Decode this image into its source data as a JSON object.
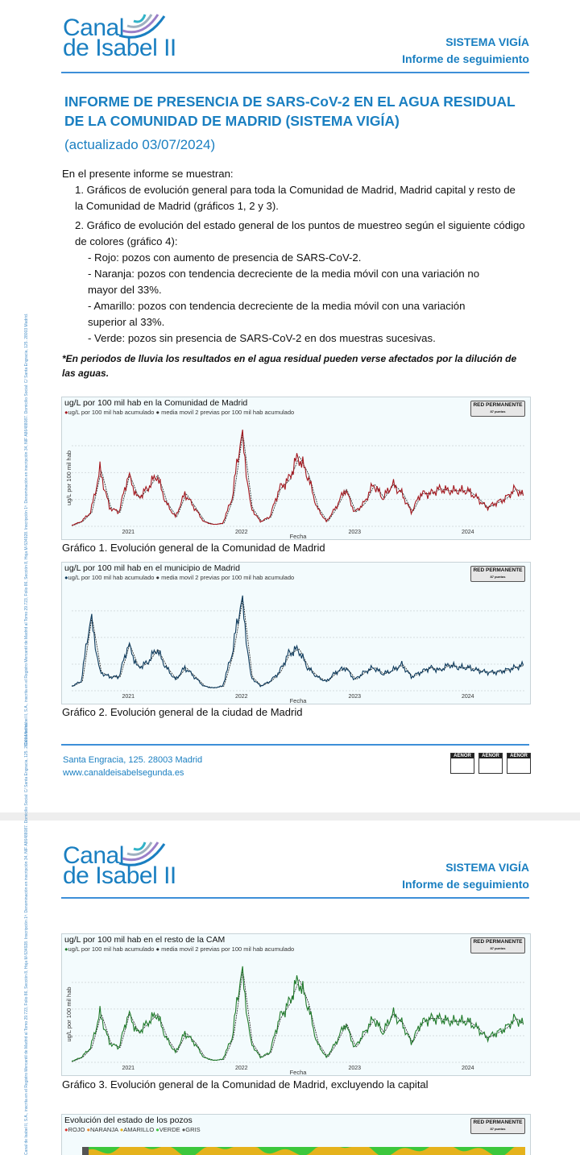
{
  "header": {
    "logo_line1": "Canal",
    "logo_line2": "de Isabel II",
    "system": "SISTEMA VIGÍA",
    "subtitle": "Informe de seguimiento"
  },
  "sidebar_text": "Canal de Isabel II, S.A., inscrita en el Registro Mercantil de Madrid al Tomo 29.723, Folio 86, Sección 8, Hoja M-534928. Inscripción 1ª. Denominación en inscripción 34, NIF A86488087. Domicilio Social: C/ Santa Engracia, 125. 28003 Madrid.",
  "report": {
    "title": "INFORME DE PRESENCIA DE SARS-CoV-2 EN EL AGUA RESIDUAL DE LA COMUNIDAD DE MADRID (SISTEMA VIGÍA)",
    "updated": "(actualizado 03/07/2024)",
    "intro": "En el presente informe se muestran:",
    "item1": "1. Gráficos de evolución general para toda la Comunidad de Madrid, Madrid capital y resto de la Comunidad de Madrid (gráficos 1, 2 y 3).",
    "item2": "2. Gráfico de evolución del estado general de los puntos de muestreo según el siguiente código de colores (gráfico 4):",
    "codes": [
      "- Rojo: pozos con aumento de presencia de SARS-CoV-2.",
      "- Naranja: pozos con tendencia decreciente de la media móvil con una variación no mayor del 33%.",
      "- Amarillo: pozos con tendencia decreciente de la media móvil con una variación superior al 33%.",
      "- Verde: pozos sin presencia de SARS-CoV-2 en dos muestras sucesivas."
    ],
    "note": "*En periodos de lluvia los resultados en el agua residual pueden verse afectados por la dilución de las aguas."
  },
  "badge": {
    "label": "RED PERMANENTE",
    "sub": "87 puntos"
  },
  "footer": {
    "address": "Santa Engracia, 125. 28003 Madrid",
    "web": "www.canaldeisabelsegunda.es",
    "cert": [
      "AENOR",
      "AENOR",
      "AENOR"
    ]
  },
  "chart_data": [
    {
      "type": "line",
      "title": "ug/L por 100 mil hab en la Comunidad de Madrid",
      "caption": "Gráfico 1. Evolución general de la Comunidad de Madrid",
      "legend": [
        "ug/L por 100 mil hab acumulado",
        "media movil 2 previas por 100 mil hab acumulado"
      ],
      "xlabel": "Fecha",
      "ylabel": "ug/L por 100 mil hab",
      "xticks": [
        "2021",
        "2022",
        "2023",
        "2024"
      ],
      "start": "2020-07",
      "color": "#a3161d",
      "values": [
        1,
        5,
        15,
        60,
        20,
        15,
        55,
        30,
        40,
        55,
        25,
        10,
        35,
        20,
        5,
        2,
        3,
        30,
        100,
        20,
        5,
        10,
        40,
        50,
        75,
        55,
        20,
        5,
        20,
        40,
        15,
        25,
        45,
        30,
        45,
        35,
        15,
        35,
        35,
        40,
        38,
        38,
        38,
        30,
        20,
        25,
        30,
        40,
        32
      ]
    },
    {
      "type": "line",
      "title": "ug/L por 100 mil hab en el municipio de Madrid",
      "caption": "Gráfico 2. Evolución general de la ciudad de Madrid",
      "legend": [
        "ug/L por 100 mil hab acumulado",
        "media movil 2 previas por 100 mil hab acumulado"
      ],
      "xlabel": "Fecha",
      "ylabel": "",
      "xticks": [
        "2021",
        "2022",
        "2023",
        "2024"
      ],
      "start": "2020-07",
      "color": "#0d3a5c",
      "values": [
        5,
        10,
        80,
        20,
        15,
        15,
        50,
        25,
        30,
        45,
        25,
        12,
        25,
        15,
        5,
        3,
        5,
        40,
        100,
        15,
        5,
        10,
        20,
        40,
        45,
        25,
        15,
        10,
        20,
        25,
        12,
        20,
        25,
        18,
        22,
        28,
        15,
        20,
        25,
        22,
        28,
        25,
        25,
        22,
        20,
        20,
        22,
        25,
        28
      ]
    },
    {
      "type": "line",
      "title": "ug/L por 100 mil hab en el resto de la CAM",
      "caption": "Gráfico 3. Evolución general de la Comunidad de Madrid, excluyendo la capital",
      "legend": [
        "ug/L por 100 mil hab acumulado",
        "media movil 2 previas por 100 mil hab acumulado"
      ],
      "xlabel": "Fecha",
      "ylabel": "ug/L por 100 mil hab",
      "xticks": [
        "2021",
        "2022",
        "2023",
        "2024"
      ],
      "start": "2020-07",
      "color": "#1f7a2a",
      "values": [
        1,
        5,
        15,
        50,
        20,
        15,
        50,
        30,
        40,
        50,
        25,
        10,
        30,
        20,
        5,
        2,
        3,
        25,
        95,
        20,
        5,
        10,
        45,
        60,
        85,
        60,
        20,
        5,
        20,
        40,
        15,
        30,
        45,
        30,
        50,
        40,
        20,
        40,
        45,
        45,
        42,
        42,
        42,
        35,
        25,
        30,
        35,
        45,
        38
      ]
    },
    {
      "type": "area",
      "title": "Evolución del estado de los pozos",
      "legend": [
        {
          "label": "ROJO",
          "color": "#d6302a"
        },
        {
          "label": "NARANJA",
          "color": "#e8852b"
        },
        {
          "label": "AMARILLO",
          "color": "#e5b21c"
        },
        {
          "label": "VERDE",
          "color": "#3cc73c"
        },
        {
          "label": "GRIS",
          "color": "#555555"
        }
      ]
    }
  ]
}
